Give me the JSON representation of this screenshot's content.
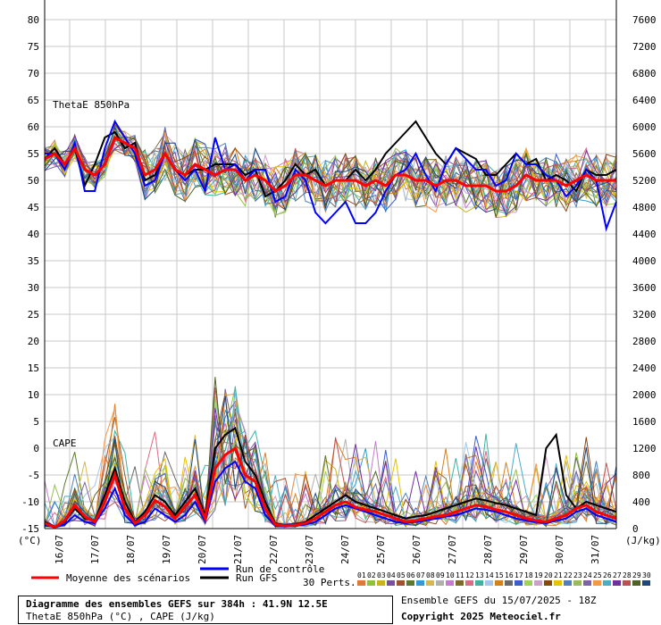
{
  "chart_data": {
    "type": "line",
    "panels": [
      {
        "label": "ThetaE 850hPa",
        "axis": "left",
        "unit_label": "(°C)"
      },
      {
        "label": "CAPE",
        "axis": "right",
        "unit_label": "(J/kg)"
      }
    ],
    "left_axis": {
      "ylim": [
        -15,
        80
      ],
      "ticks": [
        80,
        75,
        70,
        65,
        60,
        55,
        50,
        45,
        40,
        35,
        30,
        25,
        20,
        15,
        10,
        5,
        0,
        -5,
        -10,
        -15
      ],
      "unit": "(°C)"
    },
    "right_axis": {
      "ylim": [
        0,
        7600
      ],
      "ticks": [
        7600,
        7200,
        6800,
        6400,
        6000,
        5600,
        5200,
        4800,
        4400,
        4000,
        3600,
        3200,
        2800,
        2400,
        2000,
        1600,
        1200,
        800,
        400,
        0
      ],
      "unit": "(J/kg)"
    },
    "x_dates": [
      "16/07",
      "17/07",
      "18/07",
      "19/07",
      "20/07",
      "21/07",
      "22/07",
      "23/07",
      "24/07",
      "25/07",
      "26/07",
      "27/07",
      "28/07",
      "29/07",
      "30/07",
      "31/07"
    ],
    "grid": true,
    "thetae_series": [
      {
        "name": "Moyenne des scénarios",
        "color": "#ff0000",
        "values": [
          54,
          55,
          53,
          56,
          52,
          51,
          53,
          58,
          57,
          56,
          51,
          52,
          55,
          52,
          51,
          53,
          52,
          51,
          52,
          52,
          50,
          51,
          50,
          48,
          49,
          51,
          51,
          50,
          49,
          50,
          50,
          50,
          49,
          50,
          49,
          51,
          51,
          50,
          50,
          49,
          50,
          50,
          49,
          49,
          49,
          48,
          48,
          49,
          51,
          50,
          50,
          50,
          49,
          50,
          51,
          50,
          50,
          50
        ]
      },
      {
        "name": "Run de contrôle",
        "color": "#0000ff",
        "values": [
          55,
          55,
          52,
          57,
          48,
          48,
          56,
          61,
          58,
          55,
          49,
          50,
          55,
          52,
          50,
          52,
          48,
          58,
          52,
          53,
          50,
          52,
          52,
          46,
          47,
          52,
          50,
          44,
          42,
          44,
          46,
          42,
          42,
          44,
          48,
          51,
          52,
          55,
          51,
          48,
          53,
          56,
          54,
          52,
          52,
          49,
          50,
          55,
          53,
          53,
          51,
          50,
          47,
          49,
          52,
          50,
          41,
          46
        ]
      },
      {
        "name": "Run GFS",
        "color": "#000000",
        "values": [
          54,
          56,
          53,
          56,
          49,
          53,
          58,
          59,
          56,
          57,
          50,
          51,
          55,
          52,
          51,
          52,
          52,
          53,
          53,
          53,
          51,
          52,
          47,
          48,
          50,
          53,
          51,
          52,
          49,
          50,
          50,
          52,
          50,
          52,
          55,
          57,
          59,
          61,
          58,
          55,
          53,
          56,
          55,
          54,
          51,
          51,
          53,
          55,
          53,
          54,
          50,
          51,
          50,
          48,
          52,
          51,
          51,
          52
        ]
      }
    ],
    "cape_series": [
      {
        "name": "Moyenne des scénarios",
        "color": "#ff0000",
        "values": [
          80,
          20,
          120,
          350,
          180,
          100,
          400,
          800,
          300,
          80,
          200,
          420,
          330,
          150,
          330,
          500,
          150,
          900,
          1100,
          1200,
          800,
          700,
          300,
          60,
          40,
          50,
          80,
          150,
          250,
          350,
          400,
          320,
          280,
          250,
          200,
          150,
          100,
          120,
          150,
          180,
          200,
          250,
          300,
          350,
          330,
          280,
          250,
          200,
          150,
          120,
          100,
          150,
          200,
          300,
          350,
          250,
          200,
          150
        ]
      },
      {
        "name": "Run de contrôle",
        "color": "#0000ff",
        "values": [
          50,
          20,
          60,
          200,
          100,
          80,
          300,
          600,
          200,
          50,
          100,
          300,
          200,
          100,
          200,
          400,
          100,
          700,
          900,
          1000,
          700,
          600,
          200,
          40,
          30,
          40,
          60,
          100,
          200,
          300,
          350,
          300,
          250,
          200,
          150,
          100,
          80,
          100,
          120,
          150,
          180,
          200,
          250,
          300,
          280,
          250,
          200,
          150,
          120,
          100,
          80,
          120,
          150,
          250,
          300,
          200,
          150,
          100
        ]
      },
      {
        "name": "Run GFS",
        "color": "#000000",
        "values": [
          100,
          30,
          100,
          300,
          150,
          120,
          500,
          900,
          400,
          100,
          250,
          500,
          400,
          200,
          400,
          600,
          200,
          1200,
          1400,
          1500,
          1000,
          800,
          400,
          80,
          50,
          60,
          100,
          200,
          300,
          400,
          500,
          400,
          350,
          300,
          250,
          200,
          150,
          180,
          200,
          250,
          300,
          350,
          400,
          450,
          420,
          380,
          350,
          300,
          250,
          200,
          1200,
          1400,
          500,
          300,
          400,
          350,
          300,
          250
        ]
      }
    ],
    "member_count": 30
  },
  "legend": {
    "mean_label": "Moyenne des scénarios",
    "control_label": "Run de contrôle",
    "gfs_label": "Run GFS",
    "perts_label": "30 Perts.",
    "member_numbers": [
      "01",
      "02",
      "03",
      "04",
      "05",
      "06",
      "07",
      "08",
      "09",
      "10",
      "11",
      "12",
      "13",
      "14",
      "15",
      "16",
      "17",
      "18",
      "19",
      "20",
      "21",
      "22",
      "23",
      "24",
      "25",
      "26",
      "27",
      "28",
      "29",
      "30"
    ],
    "member_colors": [
      "#e4763b",
      "#8fc23b",
      "#c9b41e",
      "#7a4fa0",
      "#a0522d",
      "#5b7b2b",
      "#2f9bd8",
      "#d8b84b",
      "#b0b0b0",
      "#c77ad0",
      "#7f6a2a",
      "#e06a85",
      "#3cb4a0",
      "#a3c8e8",
      "#d87f1e",
      "#6a6a6a",
      "#3a5fcd",
      "#9ad25a",
      "#c8a2c8",
      "#8b4513",
      "#e6c200",
      "#4f81bd",
      "#9bbb59",
      "#8064a2",
      "#f79646",
      "#4bacc6",
      "#7030a0",
      "#c0504d",
      "#4f6228",
      "#1f497d"
    ]
  },
  "footer": {
    "title": "Diagramme des ensembles GEFS sur 384h : 41.9N 12.5E",
    "subtitle": "ThetaE 850hPa (°C) , CAPE (J/kg)",
    "run_info": "Ensemble GEFS du 15/07/2025 - 18Z",
    "copyright": "Copyright 2025 Meteociel.fr"
  }
}
